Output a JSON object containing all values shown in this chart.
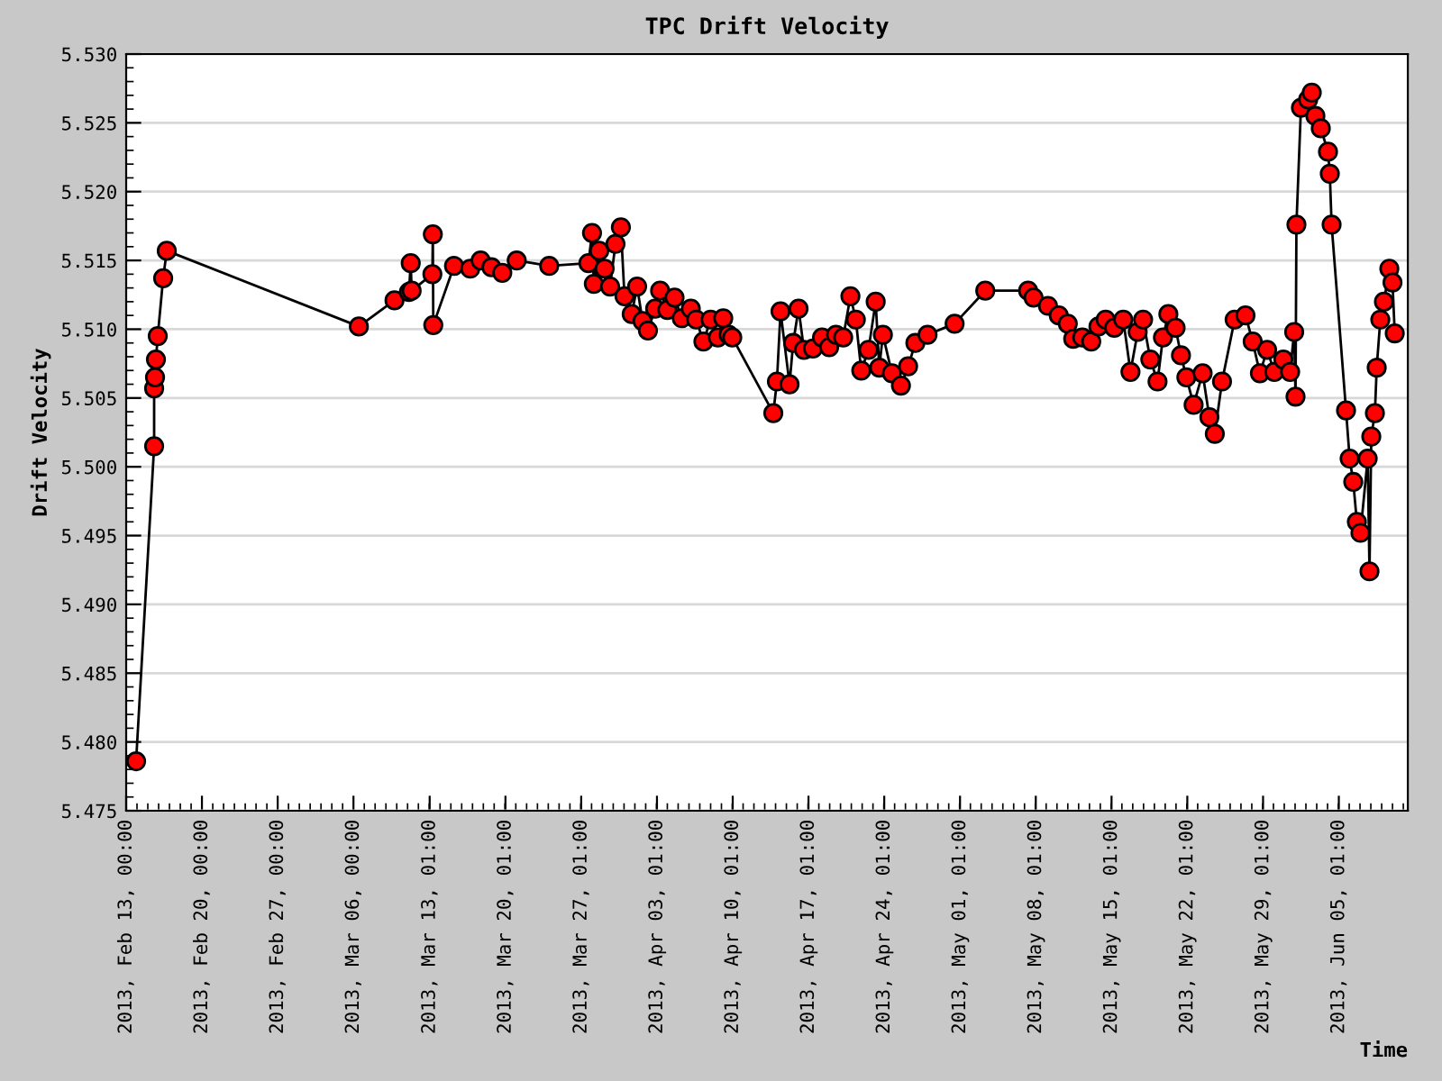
{
  "chart_data": {
    "type": "line",
    "title": "TPC Drift Velocity",
    "xlabel": "Time",
    "ylabel": "Drift Velocity",
    "marker": "circle",
    "line_style": "solid",
    "grid": "y",
    "xlim": [
      "2013-02-13T00:00",
      "2013-06-11T10:00"
    ],
    "ylim": [
      5.475,
      5.53
    ],
    "yticks": [
      5.475,
      {
        "value": 5.48,
        "label": "5.480"
      },
      5.485,
      {
        "value": 5.49,
        "label": "5.490"
      },
      5.495,
      {
        "value": 5.5,
        "label": "5.500"
      },
      5.505,
      {
        "value": 5.51,
        "label": "5.510"
      },
      5.515,
      {
        "value": 5.52,
        "label": "5.520"
      },
      5.525,
      {
        "value": 5.53,
        "label": "5.530"
      }
    ],
    "xticks": [
      {
        "value": "2013-02-13T00:00",
        "label": "2013, Feb 13, 00:00"
      },
      {
        "value": "2013-02-20T00:00",
        "label": "2013, Feb 20, 00:00"
      },
      {
        "value": "2013-02-27T00:00",
        "label": "2013, Feb 27, 00:00"
      },
      {
        "value": "2013-03-06T00:00",
        "label": "2013, Mar 06, 00:00"
      },
      {
        "value": "2013-03-13T01:00",
        "label": "2013, Mar 13, 01:00"
      },
      {
        "value": "2013-03-20T01:00",
        "label": "2013, Mar 20, 01:00"
      },
      {
        "value": "2013-03-27T01:00",
        "label": "2013, Mar 27, 01:00"
      },
      {
        "value": "2013-04-03T01:00",
        "label": "2013, Apr 03, 01:00"
      },
      {
        "value": "2013-04-10T01:00",
        "label": "2013, Apr 10, 01:00"
      },
      {
        "value": "2013-04-17T01:00",
        "label": "2013, Apr 17, 01:00"
      },
      {
        "value": "2013-04-24T01:00",
        "label": "2013, Apr 24, 01:00"
      },
      {
        "value": "2013-05-01T01:00",
        "label": "2013, May 01, 01:00"
      },
      {
        "value": "2013-05-08T01:00",
        "label": "2013, May 08, 01:00"
      },
      {
        "value": "2013-05-15T01:00",
        "label": "2013, May 15, 01:00"
      },
      {
        "value": "2013-05-22T01:00",
        "label": "2013, May 22, 01:00"
      },
      {
        "value": "2013-05-29T01:00",
        "label": "2013, May 29, 01:00"
      },
      {
        "value": "2013-06-05T01:00",
        "label": "2013, Jun 05, 01:00"
      }
    ],
    "series": [
      {
        "color": "#ff0000",
        "x": [
          "2013-02-13T22:00",
          "2013-02-15T14:00",
          "2013-02-15T14:00",
          "2013-02-15T16:00",
          "2013-02-15T18:00",
          "2013-02-15T22:00",
          "2013-02-16T10:00",
          "2013-02-16T18:00",
          "2013-03-06T12:00",
          "2013-03-09T19:00",
          "2013-03-11T03:00",
          "2013-03-11T07:00",
          "2013-03-11T09:00",
          "2013-03-13T07:00",
          "2013-03-13T08:00",
          "2013-03-13T09:00",
          "2013-03-15T07:00",
          "2013-03-16T19:00",
          "2013-03-17T18:00",
          "2013-03-18T18:00",
          "2013-03-19T18:00",
          "2013-03-21T02:00",
          "2013-03-24T02:00",
          "2013-03-27T17:00",
          "2013-03-28T01:00",
          "2013-03-28T05:00",
          "2013-03-28T17:00",
          "2013-03-29T05:00",
          "2013-03-29T17:00",
          "2013-03-30T05:00",
          "2013-03-30T17:00",
          "2013-03-31T01:00",
          "2013-03-31T17:00",
          "2013-04-01T05:00",
          "2013-04-01T17:00",
          "2013-04-02T05:00",
          "2013-04-02T21:00",
          "2013-04-03T08:00",
          "2013-04-04T00:00",
          "2013-04-04T16:00",
          "2013-04-05T08:00",
          "2013-04-06T04:00",
          "2013-04-06T16:00",
          "2013-04-07T08:00",
          "2013-04-08T00:00",
          "2013-04-08T16:00",
          "2013-04-09T04:00",
          "2013-04-09T16:00",
          "2013-04-10T00:00",
          "2013-04-13T19:00",
          "2013-04-14T03:00",
          "2013-04-14T11:00",
          "2013-04-15T07:00",
          "2013-04-15T15:00",
          "2013-04-16T03:00",
          "2013-04-16T15:00",
          "2013-04-17T11:00",
          "2013-04-18T07:00",
          "2013-04-18T23:00",
          "2013-04-19T14:00",
          "2013-04-20T06:00",
          "2013-04-20T22:00",
          "2013-04-21T10:00",
          "2013-04-21T22:00",
          "2013-04-22T14:00",
          "2013-04-23T06:00",
          "2013-04-23T14:00",
          "2013-04-23T22:00",
          "2013-04-24T18:00",
          "2013-04-25T14:00",
          "2013-04-26T06:00",
          "2013-04-26T22:00",
          "2013-04-28T01:00",
          "2013-04-30T13:00",
          "2013-05-03T09:00",
          "2013-05-07T08:00",
          "2013-05-07T20:00",
          "2013-05-09T04:00",
          "2013-05-10T04:00",
          "2013-05-11T00:00",
          "2013-05-11T12:00",
          "2013-05-12T08:00",
          "2013-05-13T04:00",
          "2013-05-13T20:00",
          "2013-05-14T12:00",
          "2013-05-15T07:00",
          "2013-05-16T03:00",
          "2013-05-16T19:00",
          "2013-05-17T11:00",
          "2013-05-17T23:00",
          "2013-05-18T15:00",
          "2013-05-19T07:00",
          "2013-05-19T19:00",
          "2013-05-20T07:00",
          "2013-05-20T23:00",
          "2013-05-21T11:00",
          "2013-05-21T23:00",
          "2013-05-22T15:00",
          "2013-05-23T11:00",
          "2013-05-24T02:00",
          "2013-05-24T14:00",
          "2013-05-25T06:00",
          "2013-05-26T10:00",
          "2013-05-27T10:00",
          "2013-05-28T02:00",
          "2013-05-28T18:00",
          "2013-05-29T10:00",
          "2013-05-30T02:00",
          "2013-05-30T22:00",
          "2013-05-31T13:00",
          "2013-05-31T22:00",
          "2013-06-01T01:00",
          "2013-06-01T03:00",
          "2013-06-01T13:00",
          "2013-06-02T05:00",
          "2013-06-02T13:00",
          "2013-06-02T21:00",
          "2013-06-03T09:00",
          "2013-06-04T01:00",
          "2013-06-04T05:00",
          "2013-06-04T09:00",
          "2013-06-05T17:00",
          "2013-06-06T01:00",
          "2013-06-06T09:00",
          "2013-06-06T17:00",
          "2013-06-07T01:00",
          "2013-06-07T17:00",
          "2013-06-07T21:00",
          "2013-06-08T01:00",
          "2013-06-08T09:00",
          "2013-06-08T13:00",
          "2013-06-08T21:00",
          "2013-06-09T05:00",
          "2013-06-09T17:00",
          "2013-06-10T00:00",
          "2013-06-10T05:00"
        ],
        "values": [
          5.4786,
          5.5015,
          5.5057,
          5.5065,
          5.5078,
          5.5095,
          5.5137,
          5.5157,
          5.5102,
          5.5121,
          5.5127,
          5.5148,
          5.5128,
          5.514,
          5.5169,
          5.5103,
          5.5146,
          5.5144,
          5.515,
          5.5145,
          5.5141,
          5.515,
          5.5146,
          5.5148,
          5.517,
          5.5133,
          5.5157,
          5.5144,
          5.5131,
          5.5162,
          5.5174,
          5.5124,
          5.5111,
          5.5131,
          5.5106,
          5.5099,
          5.5115,
          5.5128,
          5.5114,
          5.5123,
          5.5108,
          5.5115,
          5.5107,
          5.5091,
          5.5107,
          5.5094,
          5.5108,
          5.5096,
          5.5094,
          5.5039,
          5.5062,
          5.5113,
          5.506,
          5.509,
          5.5115,
          5.5085,
          5.5086,
          5.5094,
          5.5087,
          5.5096,
          5.5094,
          5.5124,
          5.5107,
          5.507,
          5.5085,
          5.512,
          5.5072,
          5.5096,
          5.5068,
          5.5059,
          5.5073,
          5.509,
          5.5096,
          5.5104,
          5.5128,
          5.5128,
          5.5123,
          5.5117,
          5.511,
          5.5104,
          5.5093,
          5.5094,
          5.5091,
          5.5102,
          5.5107,
          5.5101,
          5.5107,
          5.5069,
          5.5098,
          5.5107,
          5.5078,
          5.5062,
          5.5094,
          5.5111,
          5.5101,
          5.5081,
          5.5065,
          5.5045,
          5.5068,
          5.5036,
          5.5024,
          5.5062,
          5.5107,
          5.511,
          5.5091,
          5.5068,
          5.5085,
          5.5069,
          5.5078,
          5.5069,
          5.5098,
          5.5051,
          5.5176,
          5.5261,
          5.5267,
          5.5272,
          5.5255,
          5.5246,
          5.5229,
          5.5213,
          5.5176,
          5.5041,
          5.5006,
          5.4989,
          5.496,
          5.4952,
          5.5006,
          5.4924,
          5.5022,
          5.5039,
          5.5072,
          5.5107,
          5.512,
          5.5144,
          5.5134,
          5.5097
        ]
      }
    ]
  }
}
